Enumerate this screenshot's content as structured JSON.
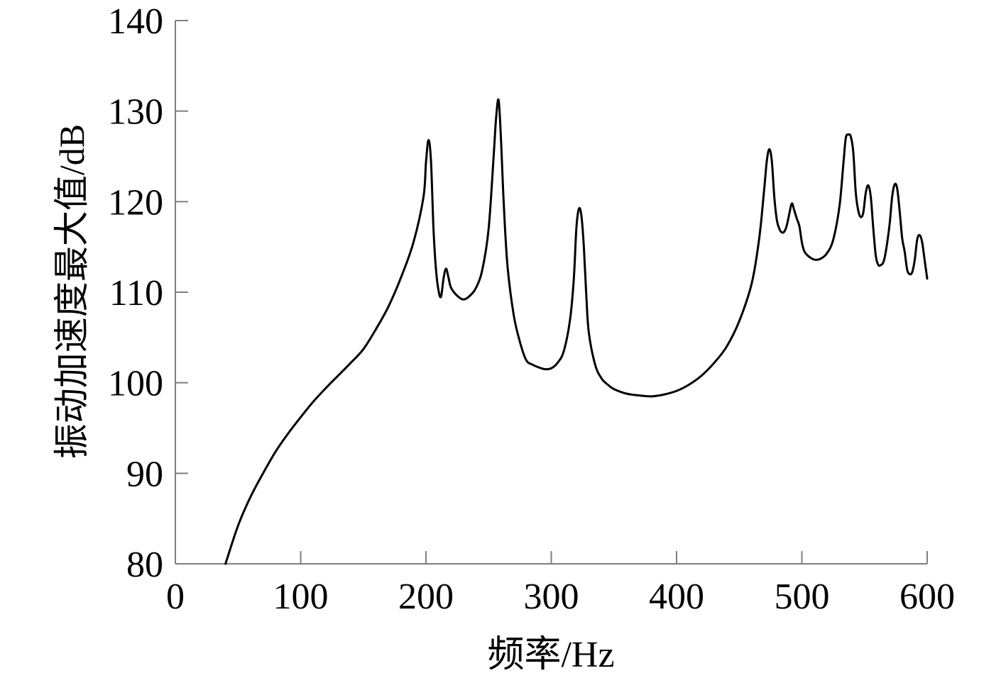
{
  "chart_data": {
    "type": "line",
    "title": "",
    "xlabel": "频率/Hz",
    "ylabel": "振动加速度最大值/dB",
    "xlim": [
      0,
      600
    ],
    "ylim": [
      80,
      140
    ],
    "xticks": [
      0,
      100,
      200,
      300,
      400,
      500,
      600
    ],
    "yticks": [
      80,
      90,
      100,
      110,
      120,
      130,
      140
    ],
    "xtick_labels": [
      "0",
      "100",
      "200",
      "300",
      "400",
      "500",
      "600"
    ],
    "ytick_labels": [
      "80",
      "90",
      "100",
      "110",
      "120",
      "130",
      "140"
    ],
    "grid": false,
    "legend": "none",
    "colors": {
      "line": "#000000",
      "axis": "#7f7f7f"
    },
    "series": [
      {
        "x": [
          40,
          50,
          60,
          70,
          80,
          90,
          100,
          110,
          120,
          130,
          140,
          150,
          160,
          170,
          180,
          190,
          198,
          200,
          202,
          204,
          206,
          208,
          210,
          212,
          214,
          216,
          218,
          220,
          225,
          230,
          235,
          240,
          245,
          250,
          254,
          256,
          258,
          260,
          262,
          265,
          270,
          275,
          280,
          285,
          290,
          295,
          300,
          305,
          310,
          315,
          318,
          320,
          322,
          324,
          326,
          328,
          330,
          335,
          340,
          345,
          350,
          360,
          370,
          380,
          390,
          400,
          410,
          420,
          430,
          440,
          450,
          460,
          466,
          470,
          472,
          474,
          476,
          478,
          480,
          482,
          484,
          486,
          488,
          490,
          492,
          494,
          496,
          498,
          500,
          502,
          505,
          510,
          515,
          520,
          525,
          530,
          533,
          535,
          537,
          539,
          541,
          543,
          545,
          547,
          549,
          551,
          553,
          555,
          557,
          559,
          561,
          563,
          565,
          567,
          570,
          572,
          574,
          576,
          578,
          580,
          582,
          584,
          586,
          588,
          590,
          592,
          594,
          596,
          598,
          600
        ],
        "y": [
          80.0,
          84.2,
          87.4,
          90.0,
          92.4,
          94.4,
          96.2,
          97.9,
          99.4,
          100.8,
          102.2,
          103.7,
          105.9,
          108.4,
          111.6,
          115.5,
          120.5,
          124.3,
          126.8,
          124.5,
          117.0,
          112.5,
          110.2,
          109.5,
          111.5,
          112.6,
          111.6,
          110.5,
          109.6,
          109.2,
          109.6,
          110.5,
          112.5,
          117.0,
          125.0,
          129.3,
          131.2,
          126.5,
          120.0,
          113.0,
          107.5,
          104.5,
          102.5,
          102.0,
          101.7,
          101.5,
          101.6,
          102.2,
          103.5,
          107.0,
          111.5,
          117.0,
          119.2,
          118.5,
          115.0,
          109.5,
          105.5,
          102.0,
          100.5,
          99.8,
          99.3,
          98.8,
          98.6,
          98.5,
          98.7,
          99.1,
          99.8,
          100.8,
          102.2,
          104.0,
          106.8,
          111.0,
          116.0,
          121.5,
          124.5,
          125.8,
          124.5,
          120.5,
          118.0,
          117.0,
          116.6,
          116.7,
          117.4,
          118.7,
          119.8,
          119.0,
          118.1,
          117.3,
          115.5,
          114.5,
          114.0,
          113.6,
          113.7,
          114.3,
          115.8,
          119.5,
          124.0,
          127.0,
          127.4,
          127.2,
          125.5,
          121.0,
          119.0,
          118.3,
          118.8,
          121.0,
          121.8,
          120.5,
          117.0,
          114.0,
          113.0,
          113.0,
          113.3,
          114.5,
          117.5,
          120.5,
          121.9,
          121.5,
          119.0,
          116.0,
          114.5,
          112.5,
          112.0,
          112.2,
          113.5,
          115.8,
          116.3,
          115.5,
          113.5,
          111.5
        ]
      }
    ]
  }
}
